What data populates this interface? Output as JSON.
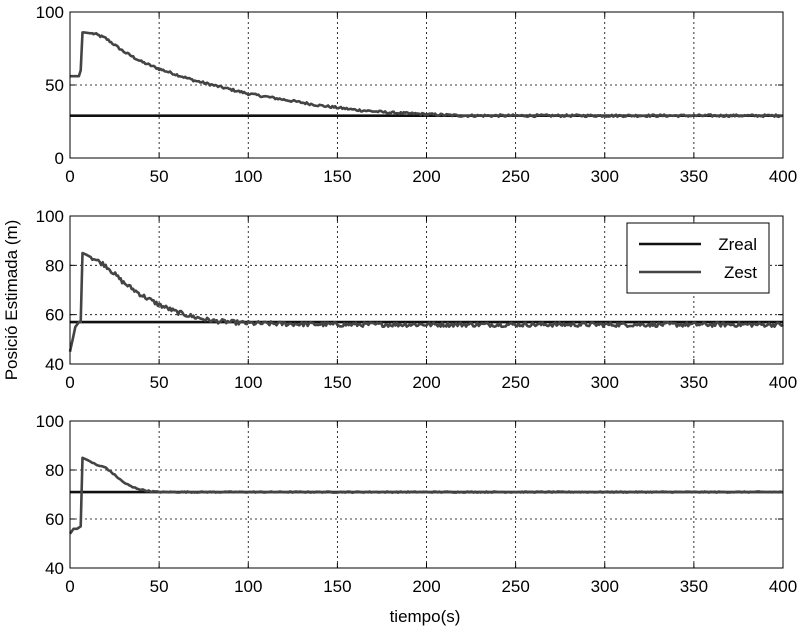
{
  "figure": {
    "ylabel": "Posició Estimada (m)",
    "xlabel": "tiempo(s)"
  },
  "legend": {
    "zreal": "Zreal",
    "zest": "Zest",
    "placement": "top-right of middle panel"
  },
  "colors": {
    "zreal": "#111111",
    "zest": "#444444",
    "grid": "#000000"
  },
  "chart_data": [
    {
      "type": "line",
      "xlim": [
        0,
        400
      ],
      "ylim": [
        0,
        100
      ],
      "xticks": [
        0,
        50,
        100,
        150,
        200,
        250,
        300,
        350,
        400
      ],
      "yticks": [
        0,
        50,
        100
      ],
      "grid": true,
      "series": [
        {
          "name": "Zreal",
          "x": [
            0,
            400
          ],
          "y": [
            29,
            29
          ]
        },
        {
          "name": "Zest",
          "x": [
            0,
            5,
            6,
            7,
            8,
            14,
            20,
            30,
            40,
            50,
            60,
            70,
            80,
            90,
            100,
            120,
            140,
            160,
            180,
            200,
            220,
            250,
            300,
            350,
            400
          ],
          "y": [
            56,
            56,
            60,
            86,
            86,
            85,
            82,
            73,
            66,
            61,
            57,
            53,
            50,
            47,
            44,
            40,
            36,
            33,
            31,
            30,
            29,
            29,
            29,
            29,
            29
          ]
        }
      ]
    },
    {
      "type": "line",
      "xlim": [
        0,
        400
      ],
      "ylim": [
        40,
        100
      ],
      "xticks": [
        0,
        50,
        100,
        150,
        200,
        250,
        300,
        350,
        400
      ],
      "yticks": [
        40,
        60,
        80,
        100
      ],
      "grid": true,
      "series": [
        {
          "name": "Zreal",
          "x": [
            0,
            400
          ],
          "y": [
            57,
            57
          ]
        },
        {
          "name": "Zest",
          "x": [
            0,
            3,
            5,
            6,
            7,
            10,
            15,
            20,
            30,
            40,
            50,
            60,
            70,
            80,
            90,
            100,
            150,
            200,
            250,
            300,
            350,
            400
          ],
          "y": [
            45,
            55,
            57,
            57,
            85,
            84,
            82,
            80,
            73,
            68,
            64,
            61,
            59,
            57.5,
            57,
            56.5,
            56,
            56,
            56,
            56,
            56,
            56
          ]
        }
      ]
    },
    {
      "type": "line",
      "xlim": [
        0,
        400
      ],
      "ylim": [
        40,
        100
      ],
      "xticks": [
        0,
        50,
        100,
        150,
        200,
        250,
        300,
        350,
        400
      ],
      "yticks": [
        40,
        60,
        80,
        100
      ],
      "grid": true,
      "series": [
        {
          "name": "Zreal",
          "x": [
            0,
            400
          ],
          "y": [
            71,
            71
          ]
        },
        {
          "name": "Zest",
          "x": [
            0,
            2,
            4,
            6,
            7,
            10,
            15,
            20,
            25,
            30,
            35,
            40,
            45,
            50,
            100,
            200,
            300,
            400
          ],
          "y": [
            54,
            56,
            56,
            57,
            85,
            84,
            82,
            81,
            78,
            75,
            73,
            72,
            71.3,
            71,
            71,
            71,
            71,
            71
          ]
        }
      ]
    }
  ]
}
